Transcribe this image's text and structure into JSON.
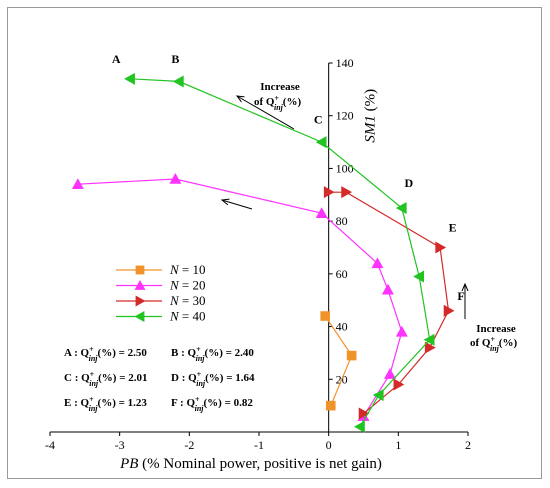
{
  "chart_data": {
    "type": "line",
    "xlabel_main": "PB",
    "xlabel_rest": " (% Nominal power, positive is net gain)",
    "ylabel_main": "SM1",
    "ylabel_rest": " (%)",
    "xlim": [
      -4,
      2
    ],
    "ylim": [
      0,
      140
    ],
    "x_ticks": [
      -4,
      -3,
      -2,
      -1,
      0,
      1,
      2
    ],
    "y_ticks": [
      20,
      40,
      60,
      80,
      100,
      120,
      140
    ],
    "grid": false,
    "series": [
      {
        "name": "N = 10",
        "marker": "square",
        "color": "#f0932b",
        "points": [
          [
            0.03,
            10
          ],
          [
            0.33,
            29
          ],
          [
            -0.05,
            44
          ]
        ]
      },
      {
        "name": "N = 20",
        "marker": "triangle-up",
        "color": "#ff33ff",
        "points": [
          [
            0.5,
            6
          ],
          [
            0.88,
            22
          ],
          [
            1.05,
            38
          ],
          [
            0.85,
            54
          ],
          [
            0.7,
            64
          ],
          [
            -0.1,
            83
          ],
          [
            -2.2,
            96
          ],
          [
            -3.6,
            94
          ]
        ]
      },
      {
        "name": "N = 30",
        "marker": "triangle-right",
        "color": "#d42a2a",
        "points": [
          [
            0.5,
            7
          ],
          [
            1.0,
            18
          ],
          [
            1.45,
            32
          ],
          [
            1.72,
            46
          ],
          [
            1.6,
            70
          ],
          [
            0.25,
            91
          ],
          [
            0.0,
            91
          ]
        ]
      },
      {
        "name": "N = 40",
        "marker": "triangle-left",
        "color": "#22c422",
        "points": [
          [
            0.45,
            2
          ],
          [
            0.72,
            14
          ],
          [
            1.45,
            35
          ],
          [
            1.3,
            59
          ],
          [
            1.05,
            85
          ],
          [
            -0.1,
            110
          ],
          [
            -2.15,
            133
          ],
          [
            -2.85,
            134
          ]
        ]
      }
    ],
    "legend": {
      "placement": "left-middle",
      "entries": [
        "N = 10",
        "N = 20",
        "N = 30",
        "N = 40"
      ]
    },
    "point_labels": [
      {
        "text": "A",
        "x": -3.05,
        "y": 140
      },
      {
        "text": "B",
        "x": -2.2,
        "y": 140
      },
      {
        "text": "C",
        "x": -0.15,
        "y": 117
      },
      {
        "text": "D",
        "x": 1.15,
        "y": 93
      },
      {
        "text": "E",
        "x": 1.78,
        "y": 76
      },
      {
        "text": "F",
        "x": 1.9,
        "y": 50
      }
    ],
    "annotations": {
      "increase_top_line1": "Increase",
      "increase_top_line2": "of Q",
      "increase_right_line1": "Increase",
      "increase_right_line2": "of Q",
      "q_sub": "inj",
      "q_sup": "+",
      "q_unit": "(%)",
      "q_values": [
        {
          "label": "A",
          "value": "2.50"
        },
        {
          "label": "B",
          "value": "2.40"
        },
        {
          "label": "C",
          "value": "2.01"
        },
        {
          "label": "D",
          "value": "1.64"
        },
        {
          "label": "E",
          "value": "1.23"
        },
        {
          "label": "F",
          "value": "0.82"
        }
      ]
    }
  }
}
